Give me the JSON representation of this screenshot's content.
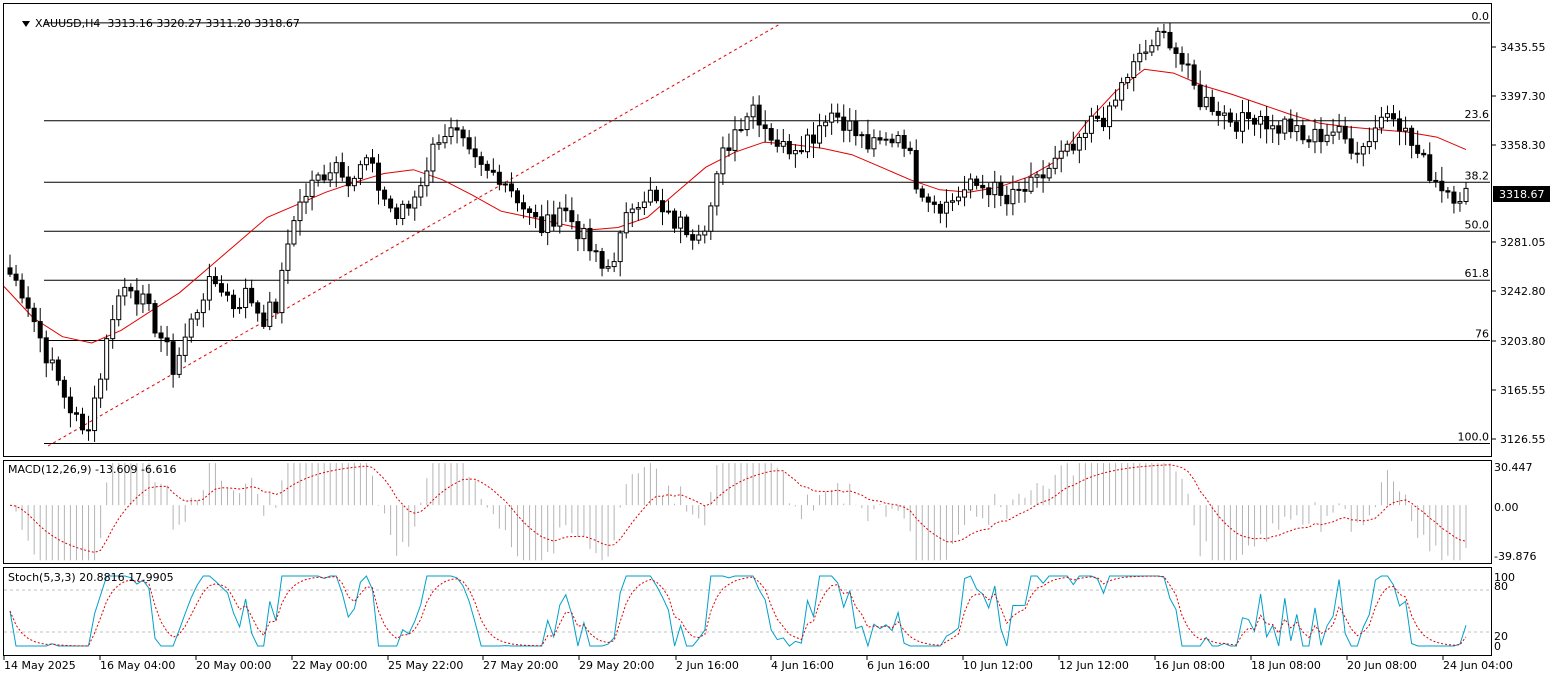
{
  "header": {
    "symbol": "XAUUSD,H4",
    "ohlc": "3313.16 3320.27 3311.20 3318.67"
  },
  "colors": {
    "candle": "#000000",
    "ma": "#e00000",
    "macd_hist": "#b4b4b4",
    "signal": "#e00000",
    "stoch_main": "#00a0c8",
    "fib": "#000000",
    "trendline": "#e00000"
  },
  "price_axis": {
    "ticks": [
      "3435.55",
      "3397.30",
      "3358.30",
      "3281.05",
      "3242.80",
      "3203.80",
      "3165.55",
      "3126.55"
    ],
    "current_price": "3318.67"
  },
  "fib_levels": [
    "0.0",
    "23.6",
    "38.2",
    "50.0",
    "61.8",
    "76",
    "100.0"
  ],
  "macd": {
    "label": "MACD(12,26,9) -13.609 -6.616",
    "axis": [
      "30.447",
      "0.00",
      "-39.876"
    ]
  },
  "stoch": {
    "label": "Stoch(5,3,3) 20.8816 17.9905",
    "axis": [
      "100",
      "80",
      "20",
      "0"
    ]
  },
  "time_axis": [
    "14 May 2025",
    "16 May 04:00",
    "20 May 00:00",
    "22 May 00:00",
    "25 May 22:00",
    "27 May 20:00",
    "29 May 20:00",
    "2 Jun 16:00",
    "4 Jun 16:00",
    "6 Jun 16:00",
    "10 Jun 12:00",
    "12 Jun 12:00",
    "16 Jun 08:00",
    "18 Jun 08:00",
    "20 Jun 08:00",
    "24 Jun 04:00"
  ],
  "chart_data": [
    {
      "type": "candlestick",
      "symbol": "XAUUSD",
      "timeframe": "H4",
      "ylim": [
        3110,
        3470
      ],
      "close_path": [
        3255,
        3240,
        3205,
        3175,
        3150,
        3125,
        3170,
        3230,
        3250,
        3230,
        3210,
        3180,
        3210,
        3240,
        3250,
        3230,
        3240,
        3220,
        3230,
        3300,
        3320,
        3335,
        3345,
        3330,
        3345,
        3320,
        3300,
        3310,
        3340,
        3370,
        3365,
        3345,
        3335,
        3335,
        3320,
        3300,
        3290,
        3310,
        3295,
        3275,
        3255,
        3280,
        3315,
        3320,
        3300,
        3295,
        3290,
        3300,
        3350,
        3375,
        3390,
        3370,
        3355,
        3360,
        3365,
        3385,
        3380,
        3365,
        3355,
        3360,
        3370,
        3330,
        3315,
        3310,
        3320,
        3325,
        3325,
        3310,
        3320,
        3325,
        3340,
        3350,
        3355,
        3380,
        3380,
        3410,
        3425,
        3440,
        3445,
        3420,
        3395,
        3390,
        3380,
        3375,
        3385,
        3370,
        3375,
        3360,
        3365,
        3370,
        3360,
        3355,
        3375,
        3390,
        3365,
        3345,
        3330,
        3320,
        3319
      ],
      "ma_approx": [
        3245,
        3220,
        3205,
        3200,
        3210,
        3225,
        3240,
        3260,
        3280,
        3300,
        3310,
        3320,
        3328,
        3335,
        3338,
        3330,
        3318,
        3305,
        3300,
        3295,
        3290,
        3292,
        3300,
        3320,
        3340,
        3352,
        3360,
        3358,
        3355,
        3350,
        3340,
        3330,
        3322,
        3320,
        3324,
        3332,
        3345,
        3375,
        3400,
        3418,
        3415,
        3405,
        3398,
        3390,
        3382,
        3375,
        3372,
        3370,
        3368,
        3364,
        3354
      ],
      "macd_range": [
        -39.876,
        30.447
      ],
      "stoch_range": [
        0,
        100
      ],
      "stoch_levels": [
        20,
        80
      ]
    }
  ]
}
